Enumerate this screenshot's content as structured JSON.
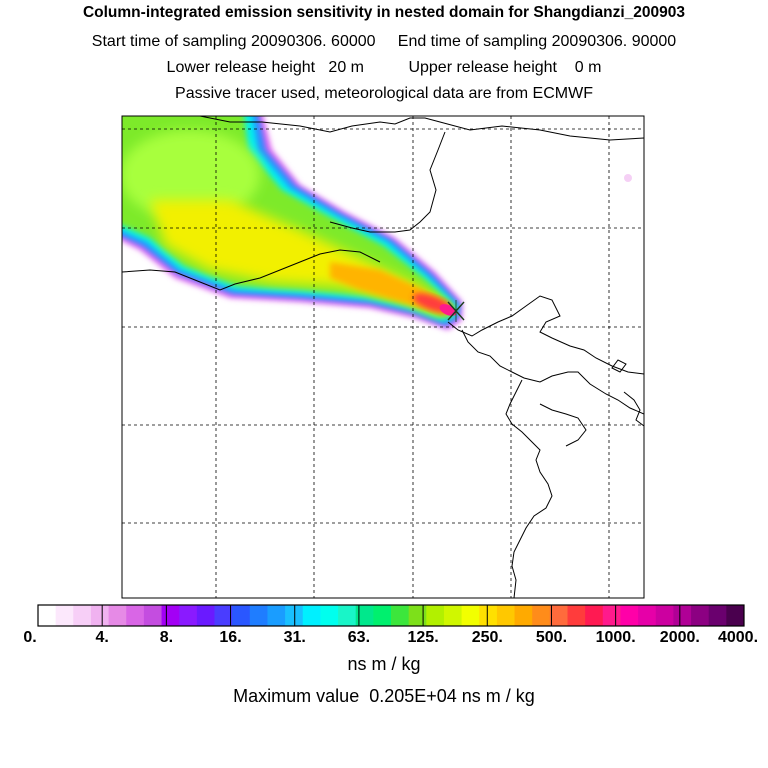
{
  "chart_data": {
    "type": "heatmap",
    "title": "Column-integrated emission sensitivity in nested domain for Shangdianzi_200903",
    "subtitle_lines": [
      "Start time of sampling 20090306. 60000     End time of sampling 20090306. 90000",
      "Lower release height   20 m          Upper release height    0 m",
      "Passive tracer used, meteorological data are from ECMWF"
    ],
    "colorbar": {
      "ticks": [
        "0.",
        "4.",
        "8.",
        "16.",
        "31.",
        "63.",
        "125.",
        "250.",
        "500.",
        "1000.",
        "2000.",
        "4000."
      ],
      "colors": [
        "#ffffff",
        "#fce8fc",
        "#f7cff7",
        "#f0b2f0",
        "#e68ae6",
        "#d966e6",
        "#c44de0",
        "#a300f5",
        "#8a1aff",
        "#6a1aff",
        "#4a3dff",
        "#2a57ff",
        "#1f7dff",
        "#1a9dff",
        "#19c0ff",
        "#00f0ff",
        "#00ffee",
        "#19f5c8",
        "#00e88c",
        "#00f06e",
        "#3ce63c",
        "#7de01a",
        "#b2f000",
        "#d0f700",
        "#f2ff00",
        "#ffe000",
        "#ffc800",
        "#ffaa00",
        "#ff8c1a",
        "#ff6b3c",
        "#ff3c3c",
        "#ff1a52",
        "#ff1a8c",
        "#ff00a8",
        "#e600a8",
        "#cc00a0",
        "#b00096",
        "#8c0082",
        "#6a006e",
        "#4a004e"
      ],
      "unit": "ns m / kg"
    },
    "max_value_text": "Maximum value  0.205E+04 ns m / kg",
    "receptor": "Shangdianzi",
    "plume": {
      "direction": "northwest",
      "peak_value": 2050
    }
  }
}
